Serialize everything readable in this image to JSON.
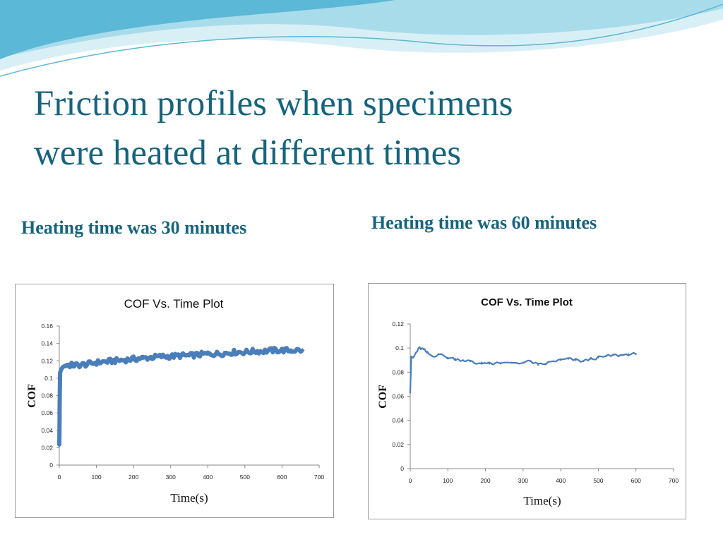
{
  "slide": {
    "title_line1": "Friction profiles when specimens",
    "title_line2": "were heated at different times",
    "subhead_left": "Heating time was 30 minutes",
    "subhead_right": "Heating time was 60 minutes",
    "theme_color": "#17637c",
    "wave_colors": [
      "#5bb8d6",
      "#a9dcea",
      "#d9eff6"
    ]
  },
  "chart_data": [
    {
      "type": "line",
      "title": "COF Vs. Time Plot",
      "xlabel": "Time(s)",
      "ylabel": "COF",
      "xlim": [
        0,
        700
      ],
      "ylim": [
        0,
        0.16
      ],
      "x_ticks": [
        "0",
        "100",
        "200",
        "300",
        "400",
        "500",
        "600",
        "700"
      ],
      "y_ticks": [
        "0",
        "0.02",
        "0.04",
        "0.06",
        "0.08",
        "0.1",
        "0.12",
        "0.14",
        "0.16"
      ],
      "grid": false,
      "markers": "diamond",
      "line_color": "#4a7ebb",
      "series": [
        {
          "x": [
            0,
            1,
            2,
            5,
            10,
            20,
            30,
            50,
            75,
            100,
            125,
            150,
            175,
            200,
            225,
            250,
            275,
            300,
            325,
            350,
            375,
            400,
            425,
            450,
            475,
            500,
            525,
            550,
            575,
            600,
            625,
            655
          ],
          "y": [
            0.023,
            0.071,
            0.106,
            0.11,
            0.113,
            0.115,
            0.115,
            0.115,
            0.116,
            0.118,
            0.119,
            0.12,
            0.121,
            0.122,
            0.123,
            0.124,
            0.125,
            0.125,
            0.126,
            0.126,
            0.127,
            0.128,
            0.128,
            0.129,
            0.13,
            0.13,
            0.131,
            0.131,
            0.132,
            0.132,
            0.132,
            0.132
          ]
        }
      ]
    },
    {
      "type": "line",
      "title": "COF Vs. Time Plot",
      "xlabel": "Time(s)",
      "ylabel": "COF",
      "xlim": [
        0,
        700
      ],
      "ylim": [
        0,
        0.12
      ],
      "x_ticks": [
        "0",
        "100",
        "200",
        "300",
        "400",
        "500",
        "600",
        "700"
      ],
      "y_ticks": [
        "0",
        "0.02",
        "0.04",
        "0.06",
        "0.08",
        "0.1",
        "0.12"
      ],
      "grid": false,
      "line_color": "#4a7ebb",
      "series": [
        {
          "x": [
            0,
            3,
            8,
            15,
            25,
            35,
            45,
            60,
            75,
            100,
            120,
            140,
            160,
            175,
            190,
            210,
            240,
            270,
            300,
            320,
            340,
            360,
            380,
            400,
            420,
            440,
            460,
            480,
            500,
            520,
            540,
            560,
            580,
            600
          ],
          "y": [
            0.063,
            0.093,
            0.092,
            0.096,
            0.1,
            0.099,
            0.096,
            0.093,
            0.095,
            0.092,
            0.091,
            0.09,
            0.089,
            0.087,
            0.088,
            0.087,
            0.087,
            0.088,
            0.088,
            0.089,
            0.086,
            0.087,
            0.089,
            0.09,
            0.091,
            0.09,
            0.089,
            0.091,
            0.092,
            0.093,
            0.094,
            0.094,
            0.095,
            0.095
          ]
        }
      ]
    }
  ]
}
